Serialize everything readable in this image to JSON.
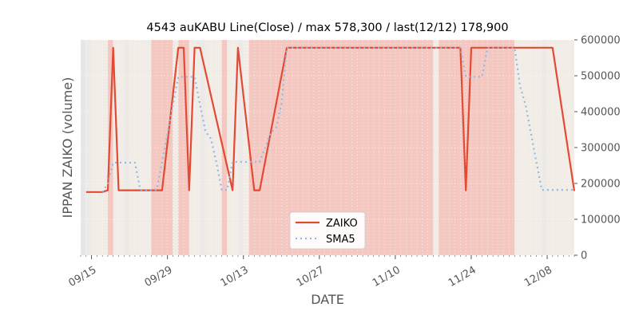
{
  "chart_data": {
    "type": "line",
    "title": "4543 auKABU Line(Close) / max 578,300 / last(12/12) 178,900",
    "xlabel": "DATE",
    "ylabel": "IPPAN ZAIKO (volume)",
    "ylim": [
      0,
      600000
    ],
    "y_ticks": [
      0,
      100000,
      200000,
      300000,
      400000,
      500000,
      600000
    ],
    "y_tick_labels": [
      "0",
      "100000",
      "200000",
      "300000",
      "400000",
      "500000",
      "600000"
    ],
    "y_axis_side": "right",
    "x_start": "2023-09-13",
    "x_end": "2023-12-13",
    "x_ticks": [
      "09/15",
      "09/29",
      "10/13",
      "10/27",
      "11/10",
      "11/24",
      "12/08"
    ],
    "x_tick_offsets": [
      2,
      16,
      30,
      44,
      58,
      72,
      86
    ],
    "grid": true,
    "legend_position": "bottom-center",
    "series": [
      {
        "name": "ZAIKO",
        "color": "#E24A33",
        "style": "solid",
        "offsets": [
          1,
          4,
          5,
          6,
          7,
          14,
          15,
          18,
          19,
          20,
          21,
          22,
          28,
          29,
          32,
          33,
          38,
          39,
          40,
          45,
          50,
          70,
          71,
          72,
          87,
          91
        ],
        "values": [
          176000,
          176000,
          181000,
          578300,
          181000,
          181000,
          181000,
          578300,
          578300,
          181000,
          578300,
          578300,
          181000,
          578300,
          181000,
          181000,
          578300,
          578300,
          578300,
          578300,
          578300,
          578300,
          181000,
          578300,
          578300,
          178900
        ]
      },
      {
        "name": "SMA5",
        "color": "#8EBAE5",
        "style": "dotted",
        "offsets": [
          4,
          5,
          6,
          10,
          11,
          14,
          15,
          18,
          19,
          20,
          21,
          22,
          23,
          24,
          25,
          26,
          27,
          28,
          29,
          32,
          33,
          35,
          36,
          37,
          38,
          70,
          71,
          72,
          73,
          74,
          75,
          80,
          81,
          82,
          83,
          84,
          85,
          87,
          91
        ],
        "values": [
          176000,
          200000,
          258000,
          258000,
          182000,
          182000,
          260000,
          497000,
          497000,
          497000,
          497000,
          420000,
          345000,
          325000,
          260000,
          182000,
          182000,
          260000,
          260000,
          260000,
          260000,
          340000,
          355000,
          420000,
          578300,
          578300,
          497000,
          497000,
          497000,
          497000,
          578300,
          578300,
          470000,
          420000,
          340000,
          260000,
          182000,
          182000,
          182000
        ]
      }
    ],
    "weekend_bands": [
      {
        "from": 1,
        "to": 2
      },
      {
        "from": 8,
        "to": 9
      },
      {
        "from": 15,
        "to": 16
      },
      {
        "from": 22,
        "to": 23
      },
      {
        "from": 29,
        "to": 30
      },
      {
        "from": 36,
        "to": 37
      },
      {
        "from": 43,
        "to": 44
      },
      {
        "from": 50,
        "to": 51
      },
      {
        "from": 57,
        "to": 58
      },
      {
        "from": 64,
        "to": 65
      },
      {
        "from": 71,
        "to": 72
      },
      {
        "from": 78,
        "to": 79
      },
      {
        "from": 85,
        "to": 86
      }
    ],
    "highlight_bands": [
      {
        "from": 5,
        "to": 6
      },
      {
        "from": 13,
        "to": 17
      },
      {
        "from": 18,
        "to": 20
      },
      {
        "from": 26,
        "to": 27
      },
      {
        "from": 31,
        "to": 65
      },
      {
        "from": 66,
        "to": 80
      }
    ]
  },
  "colors": {
    "plot_bg": "#F2ECE6",
    "highlight": "#F4C7C0",
    "weekend": "#E6E6E6",
    "grid": "#FFFFFF"
  }
}
